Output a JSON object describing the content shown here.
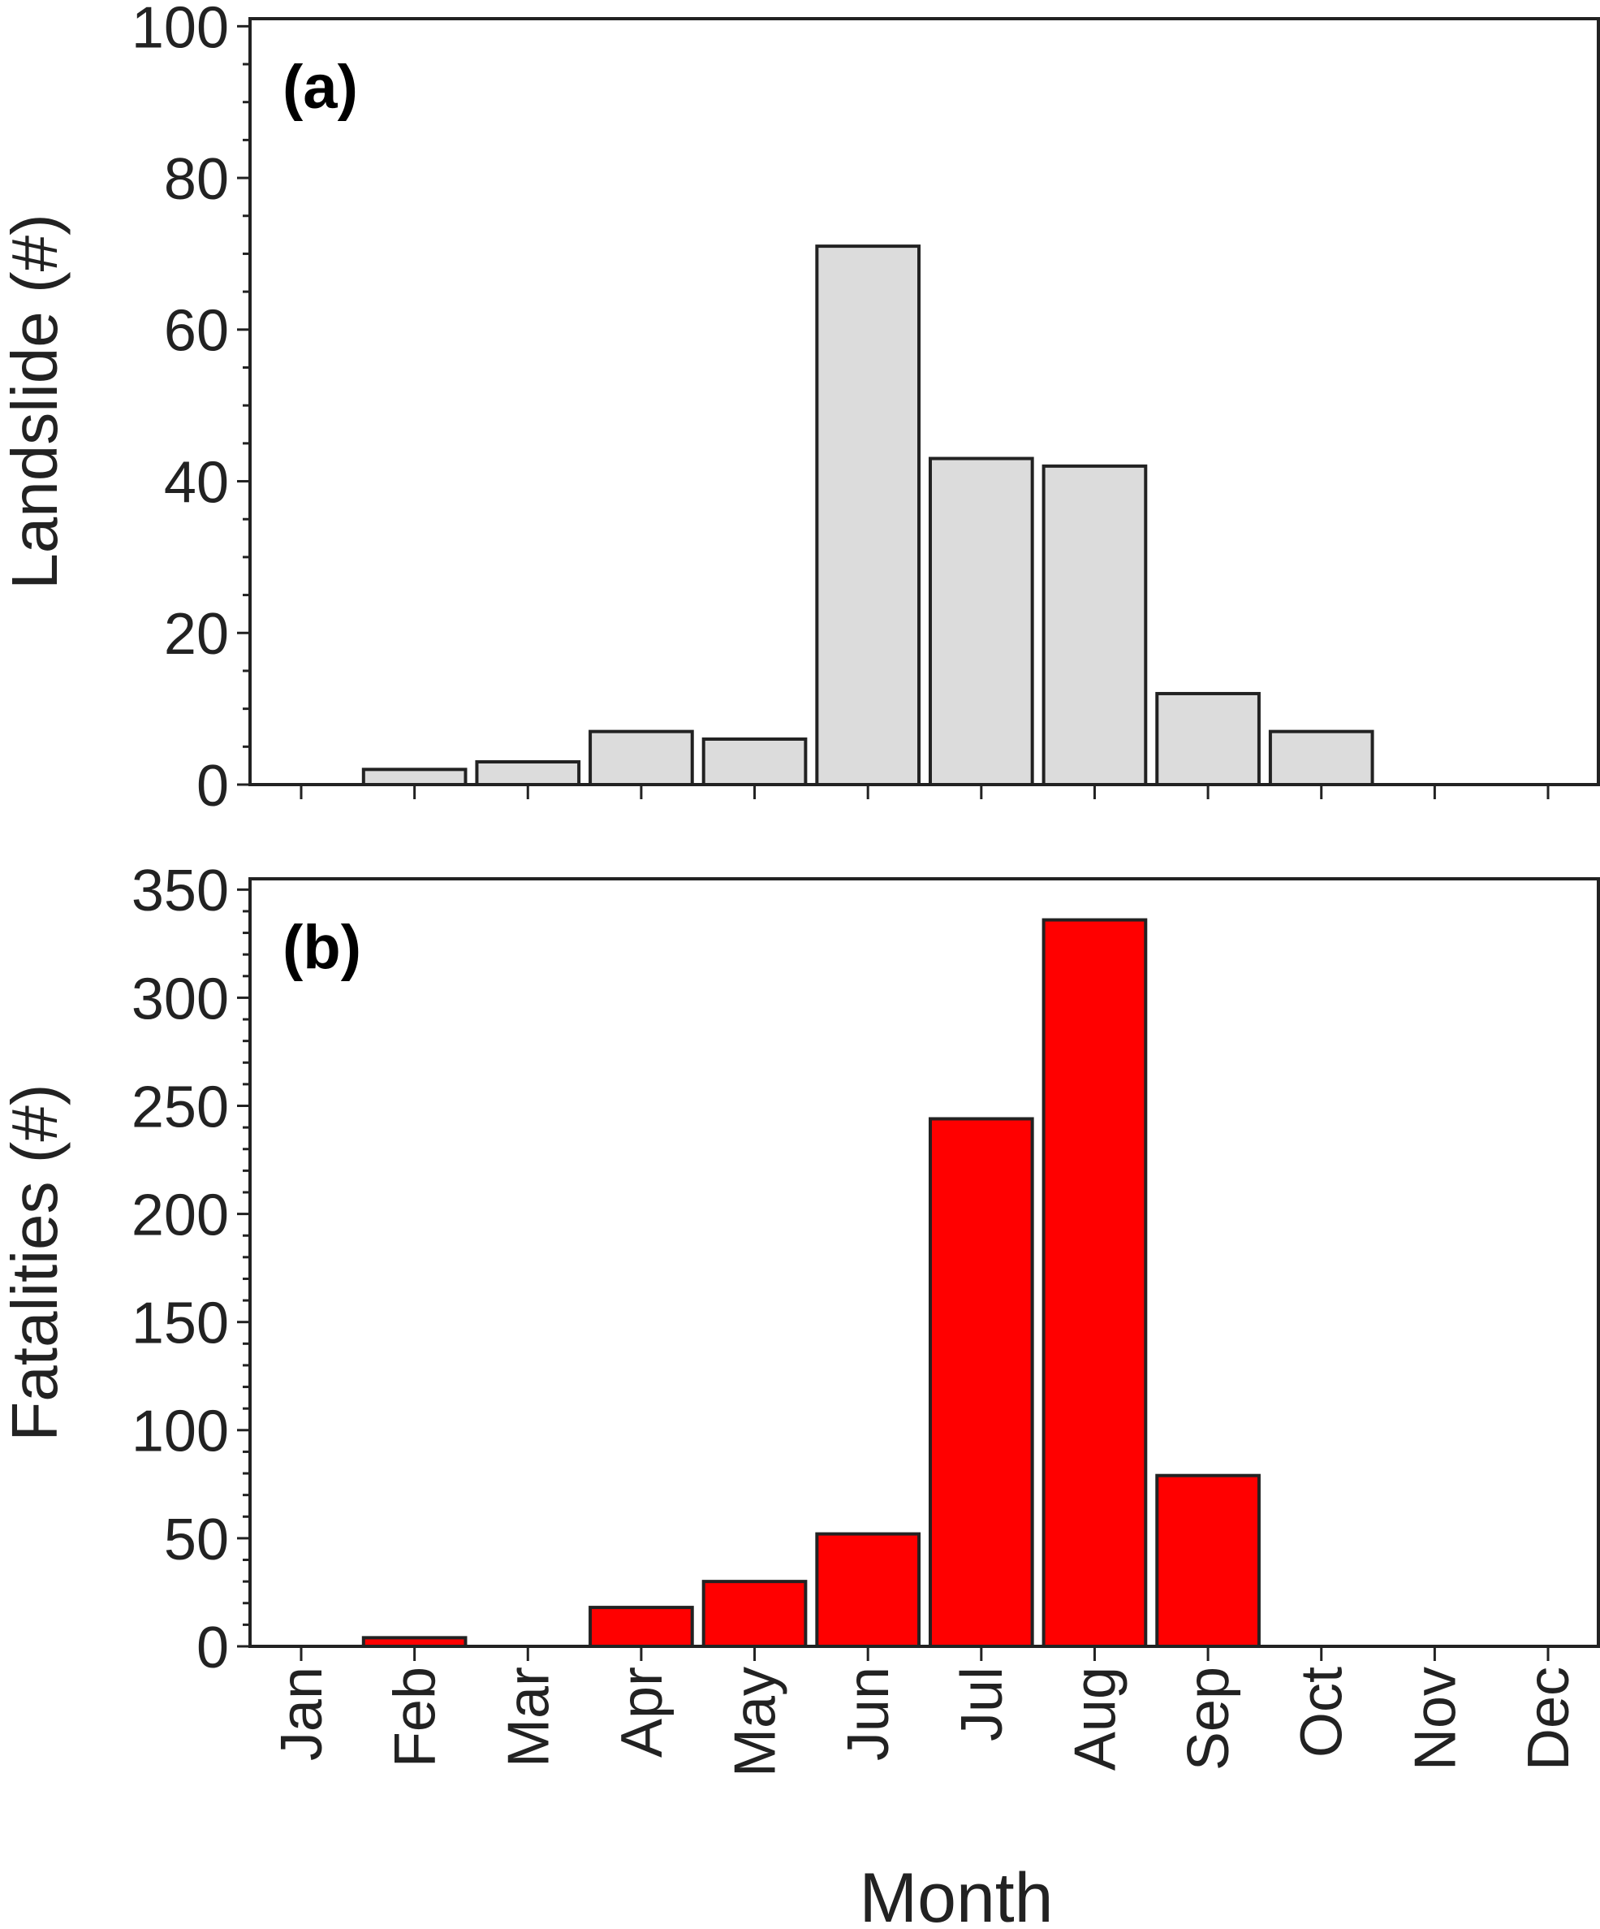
{
  "chart_data": [
    {
      "type": "bar",
      "panel_label": "(a)",
      "title": "",
      "xlabel": "",
      "ylabel": "Landslide (#)",
      "categories": [
        "Jan",
        "Feb",
        "Mar",
        "Apr",
        "May",
        "Jun",
        "Jul",
        "Aug",
        "Sep",
        "Oct",
        "Nov",
        "Dec"
      ],
      "values": [
        0,
        2,
        3,
        7,
        6,
        71,
        43,
        42,
        12,
        7,
        0,
        0
      ],
      "ylim": [
        0,
        101
      ],
      "yticks": [
        0,
        20,
        40,
        60,
        80,
        100
      ],
      "yminor_step": 5,
      "bar_color": "#dcdcdc",
      "edge_color": "#222222",
      "grid": false
    },
    {
      "type": "bar",
      "panel_label": "(b)",
      "title": "",
      "xlabel": "Month",
      "ylabel": "Fatalities (#)",
      "categories": [
        "Jan",
        "Feb",
        "Mar",
        "Apr",
        "May",
        "Jun",
        "Jul",
        "Aug",
        "Sep",
        "Oct",
        "Nov",
        "Dec"
      ],
      "values": [
        0,
        4,
        0,
        18,
        30,
        52,
        244,
        336,
        79,
        0,
        0,
        0
      ],
      "ylim": [
        0,
        355
      ],
      "yticks": [
        0,
        50,
        100,
        150,
        200,
        250,
        300,
        350
      ],
      "yminor_step": 10,
      "bar_color": "#ff0000",
      "edge_color": "#222222",
      "grid": false
    }
  ]
}
